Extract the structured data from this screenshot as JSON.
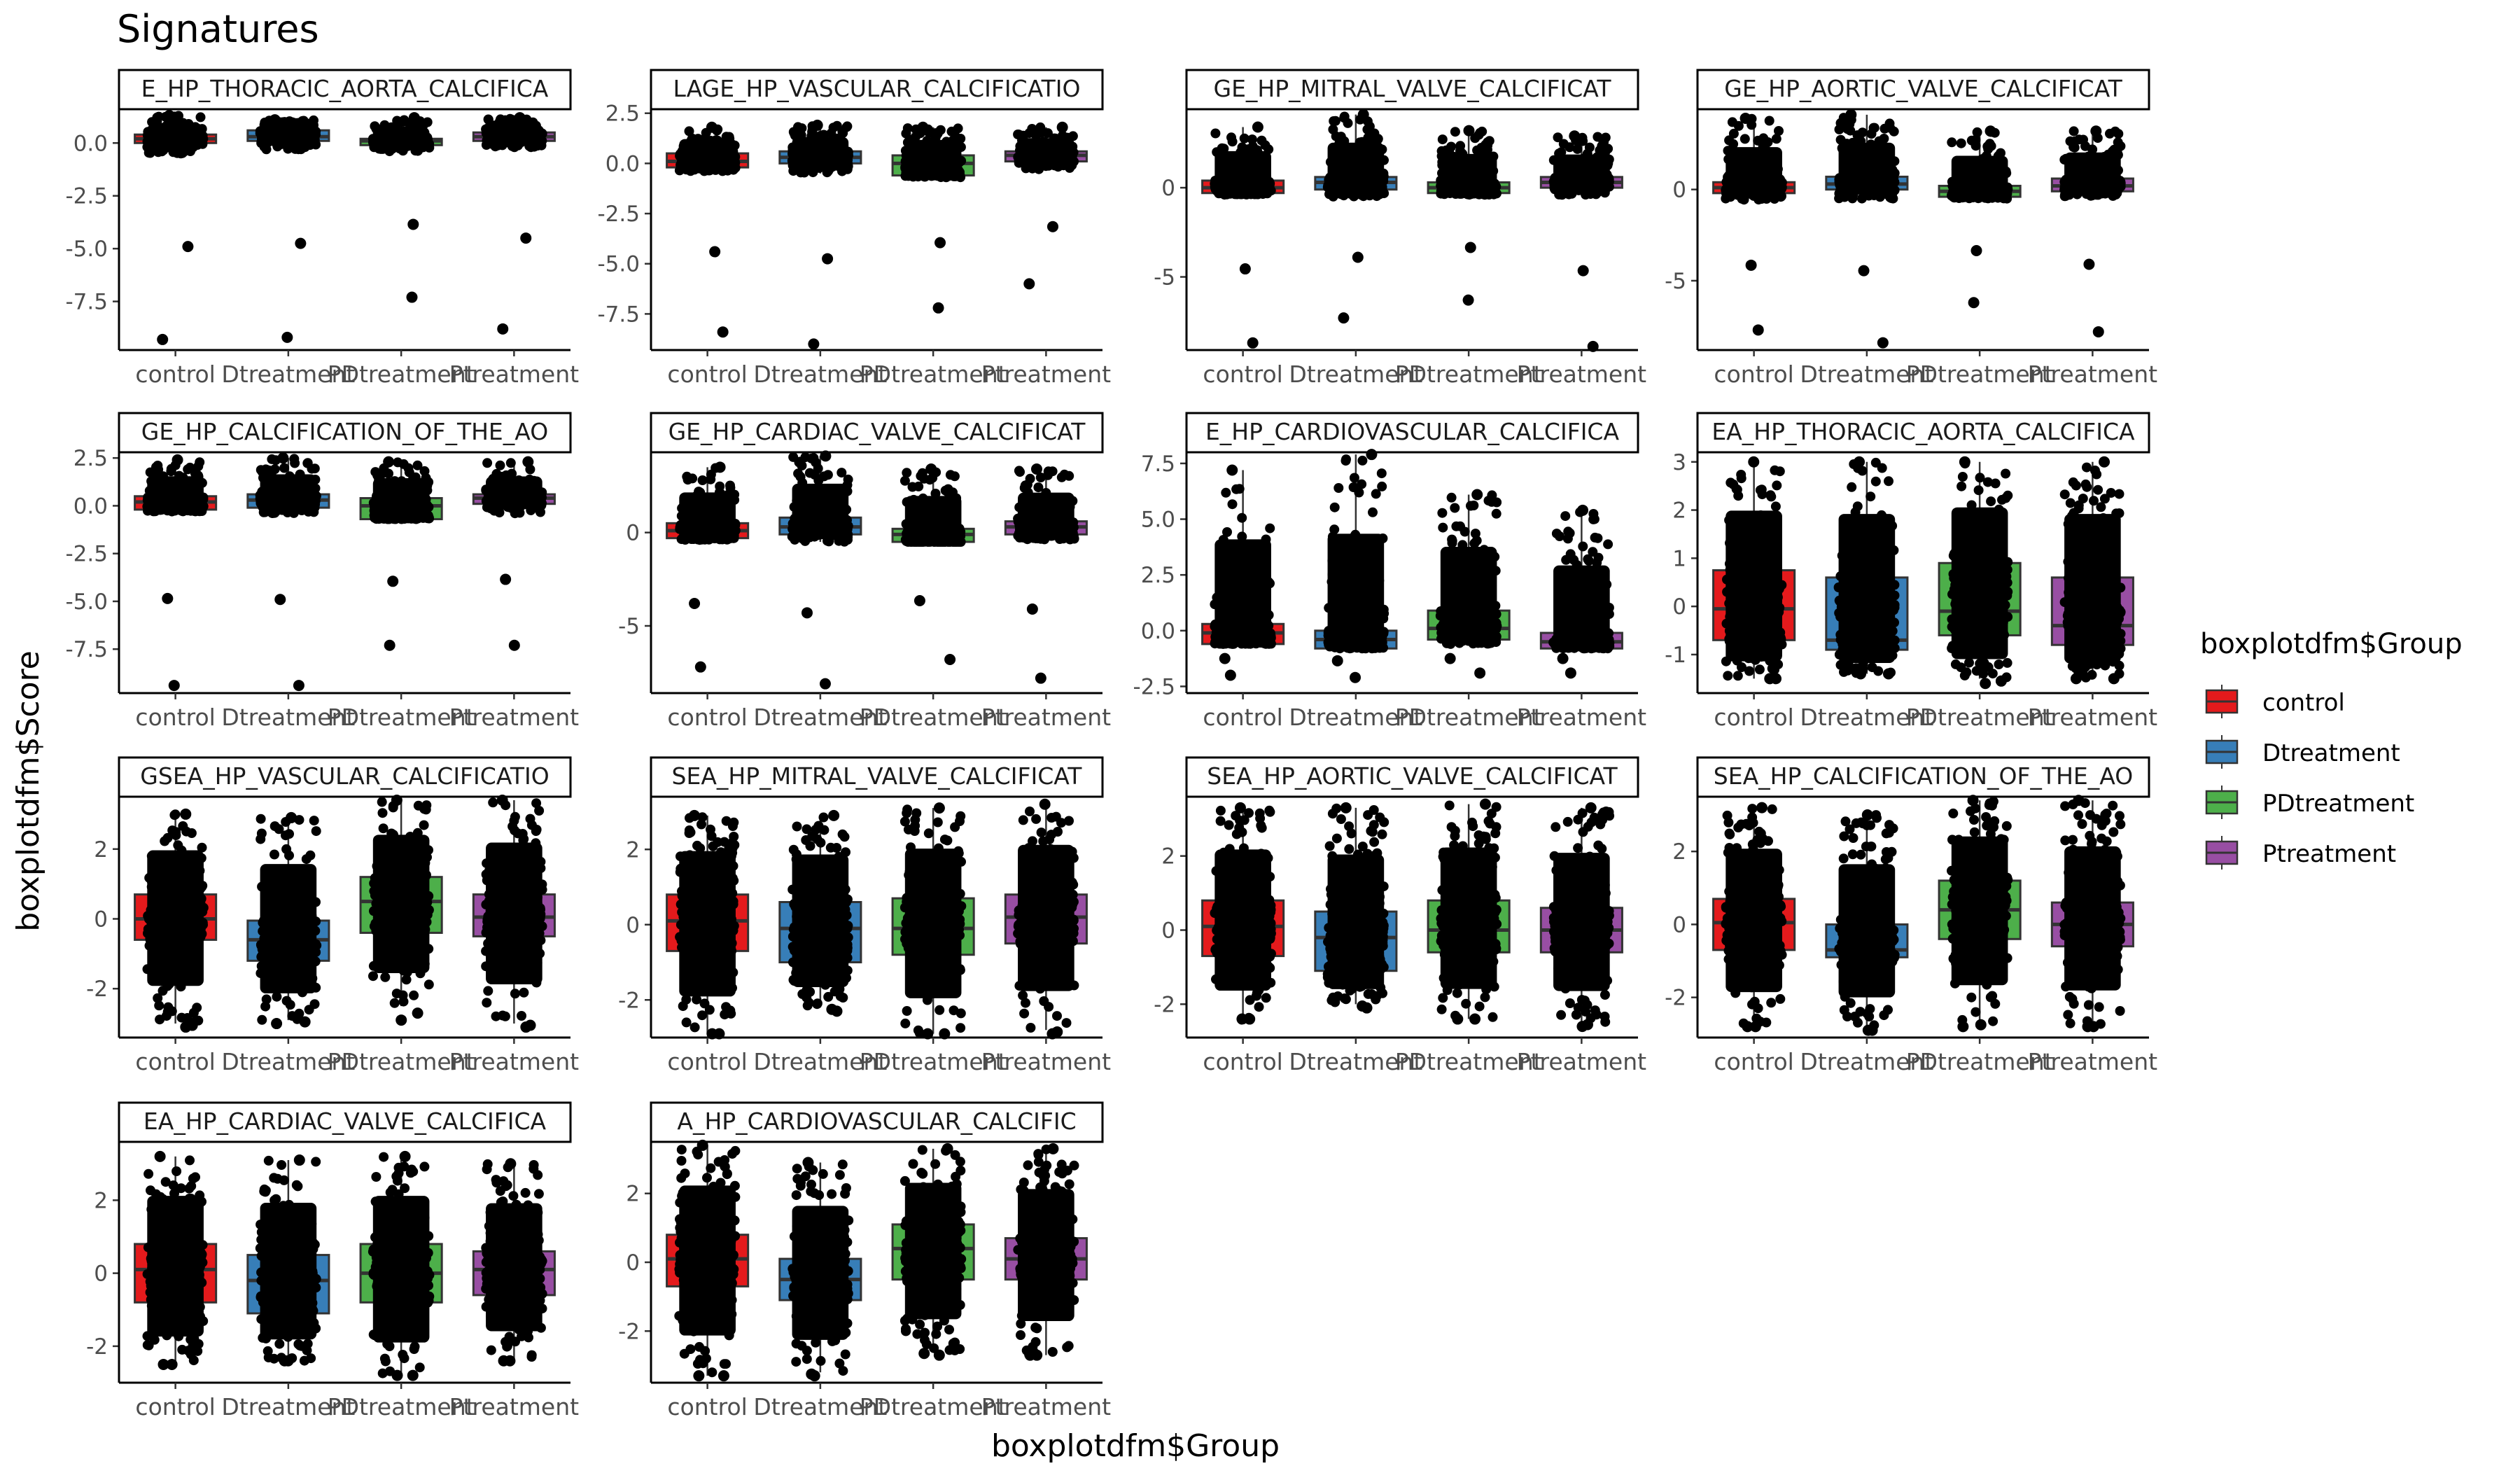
{
  "chart_data": {
    "type": "boxplot",
    "title": "Signatures",
    "xlabel": "boxplotdfm$Group",
    "ylabel": "boxplotdfm$Score",
    "categories": [
      "control",
      "Dtreatment",
      "PDtreatment",
      "Ptreatment"
    ],
    "legend": {
      "title": "boxplotdfm$Group",
      "placement": "right",
      "entries": [
        {
          "name": "control",
          "color": "#E41A1C"
        },
        {
          "name": "Dtreatment",
          "color": "#377EB8"
        },
        {
          "name": "PDtreatment",
          "color": "#4DAF4A"
        },
        {
          "name": "Ptreatment",
          "color": "#984EA3"
        }
      ]
    },
    "point_color": "#000000",
    "panels": [
      {
        "strip": "E_HP_THORACIC_AORTA_CALCIFICA",
        "ylim": [
          -9.8,
          1.6
        ],
        "yticks": [
          0,
          -2.5,
          -5,
          -7.5
        ],
        "ytick_labels": [
          "0.0",
          "-2.5",
          "-5.0",
          "-7.5"
        ],
        "boxes": [
          [
            -0.5,
            0.0,
            0.2,
            0.4,
            1.3,
            -9.3
          ],
          [
            -0.3,
            0.1,
            0.3,
            0.6,
            1.1,
            -9.2
          ],
          [
            -0.4,
            -0.1,
            0.1,
            0.2,
            1.2,
            -7.3
          ],
          [
            -0.2,
            0.1,
            0.3,
            0.5,
            1.2,
            -8.8
          ]
        ]
      },
      {
        "strip": "LAGE_HP_VASCULAR_CALCIFICATIO",
        "ylim": [
          -9.3,
          2.7
        ],
        "yticks": [
          2.5,
          0,
          -2.5,
          -5,
          -7.5
        ],
        "ytick_labels": [
          "2.5",
          "0.0",
          "-2.5",
          "-5.0",
          "-7.5"
        ],
        "boxes": [
          [
            -0.4,
            -0.2,
            0.1,
            0.5,
            1.8,
            -8.4
          ],
          [
            -0.5,
            0.0,
            0.3,
            0.6,
            1.9,
            -9.0
          ],
          [
            -0.7,
            -0.6,
            0.0,
            0.4,
            1.8,
            -7.2
          ],
          [
            -0.3,
            0.1,
            0.4,
            0.6,
            1.8,
            -6.0
          ]
        ]
      },
      {
        "strip": "GE_HP_MITRAL_VALVE_CALCIFICAT",
        "ylim": [
          -9.1,
          4.4
        ],
        "yticks": [
          0,
          -5
        ],
        "ytick_labels": [
          "0",
          "-5"
        ],
        "boxes": [
          [
            -0.4,
            -0.3,
            0.0,
            0.4,
            3.4,
            -8.7
          ],
          [
            -0.5,
            -0.1,
            0.3,
            0.6,
            4.1,
            -7.3
          ],
          [
            -0.4,
            -0.3,
            0.0,
            0.3,
            3.2,
            -6.3
          ],
          [
            -0.4,
            0.0,
            0.3,
            0.6,
            2.9,
            -8.9
          ]
        ]
      },
      {
        "strip": "GE_HP_AORTIC_VALVE_CALCIFICAT",
        "ylim": [
          -8.8,
          4.4
        ],
        "yticks": [
          0,
          -5
        ],
        "ytick_labels": [
          "0",
          "-5"
        ],
        "boxes": [
          [
            -0.6,
            -0.2,
            0.1,
            0.4,
            3.9,
            -7.7
          ],
          [
            -0.5,
            0.0,
            0.3,
            0.7,
            4.1,
            -8.4
          ],
          [
            -0.5,
            -0.4,
            -0.1,
            0.2,
            3.2,
            -6.2
          ],
          [
            -0.4,
            -0.1,
            0.2,
            0.6,
            3.2,
            -7.8
          ]
        ]
      },
      {
        "strip": "GE_HP_CALCIFICATION_OF_THE_AO",
        "ylim": [
          -9.8,
          2.8
        ],
        "yticks": [
          2.5,
          0,
          -2.5,
          -5,
          -7.5
        ],
        "ytick_labels": [
          "2.5",
          "0.0",
          "-2.5",
          "-5.0",
          "-7.5"
        ],
        "boxes": [
          [
            -0.3,
            -0.2,
            0.2,
            0.5,
            2.4,
            -9.4
          ],
          [
            -0.4,
            -0.1,
            0.3,
            0.6,
            2.5,
            -9.4
          ],
          [
            -0.6,
            -0.7,
            0.0,
            0.4,
            2.3,
            -7.3
          ],
          [
            -0.4,
            0.1,
            0.4,
            0.6,
            2.3,
            -7.3
          ]
        ]
      },
      {
        "strip": "GE_HP_CARDIAC_VALVE_CALCIFICAT",
        "ylim": [
          -8.6,
          4.3
        ],
        "yticks": [
          0,
          -5
        ],
        "ytick_labels": [
          "0",
          "-5"
        ],
        "boxes": [
          [
            -0.4,
            -0.3,
            0.1,
            0.5,
            3.5,
            -7.2
          ],
          [
            -0.5,
            -0.1,
            0.3,
            0.8,
            4.1,
            -8.1
          ],
          [
            -0.5,
            -0.5,
            -0.1,
            0.2,
            3.4,
            -6.8
          ],
          [
            -0.4,
            -0.1,
            0.3,
            0.6,
            3.4,
            -7.8
          ]
        ]
      },
      {
        "strip": "E_HP_CARDIOVASCULAR_CALCIFICA",
        "ylim": [
          -2.8,
          8.0
        ],
        "yticks": [
          7.5,
          5,
          2.5,
          0,
          -2.5
        ],
        "ytick_labels": [
          "7.5",
          "5.0",
          "2.5",
          "0.0",
          "-2.5"
        ],
        "boxes": [
          [
            -0.5,
            -0.6,
            -0.1,
            0.3,
            7.2,
            -2.0
          ],
          [
            -0.6,
            -0.8,
            -0.4,
            0.0,
            7.9,
            -2.1
          ],
          [
            -0.6,
            -0.4,
            0.1,
            0.9,
            6.1,
            -1.9
          ],
          [
            -0.6,
            -0.8,
            -0.5,
            -0.1,
            5.4,
            -1.9
          ]
        ]
      },
      {
        "strip": "EA_HP_THORACIC_AORTA_CALCIFICA",
        "ylim": [
          -1.8,
          3.2
        ],
        "yticks": [
          3,
          2,
          1,
          0,
          -1
        ],
        "ytick_labels": [
          "3",
          "2",
          "1",
          "0",
          "-1"
        ],
        "boxes": [
          [
            -1.5,
            -0.7,
            -0.05,
            0.75,
            3.0,
            -1.5
          ],
          [
            -1.4,
            -0.9,
            -0.7,
            0.6,
            3.0,
            -1.4
          ],
          [
            -1.5,
            -0.6,
            -0.1,
            0.9,
            3.0,
            -1.6
          ],
          [
            -1.5,
            -0.8,
            -0.4,
            0.6,
            3.0,
            -1.5
          ]
        ]
      },
      {
        "strip": "GSEA_HP_VASCULAR_CALCIFICATIO",
        "ylim": [
          -3.4,
          3.5
        ],
        "yticks": [
          2,
          0,
          -2
        ],
        "ytick_labels": [
          "2",
          "0",
          "-2"
        ],
        "boxes": [
          [
            -3.0,
            -0.6,
            0.0,
            0.7,
            3.0,
            -3.1
          ],
          [
            -2.9,
            -1.2,
            -0.6,
            -0.05,
            2.9,
            -3.0
          ],
          [
            -2.5,
            -0.4,
            0.5,
            1.2,
            3.4,
            -2.9
          ],
          [
            -3.0,
            -0.5,
            0.05,
            0.7,
            3.4,
            -3.1
          ]
        ]
      },
      {
        "strip": "SEA_HP_MITRAL_VALVE_CALCIFICAT",
        "ylim": [
          -3.0,
          3.4
        ],
        "yticks": [
          2,
          0,
          -2
        ],
        "ytick_labels": [
          "2",
          "0",
          "-2"
        ],
        "boxes": [
          [
            -2.9,
            -0.7,
            0.1,
            0.8,
            2.9,
            -2.9
          ],
          [
            -2.2,
            -1.0,
            -0.1,
            0.6,
            2.9,
            -2.3
          ],
          [
            -2.9,
            -0.8,
            -0.1,
            0.7,
            3.1,
            -2.9
          ],
          [
            -2.8,
            -0.5,
            0.2,
            0.8,
            3.2,
            -2.9
          ]
        ]
      },
      {
        "strip": "SEA_HP_AORTIC_VALVE_CALCIFICAT",
        "ylim": [
          -2.9,
          3.6
        ],
        "yticks": [
          2,
          0,
          -2
        ],
        "ytick_labels": [
          "2",
          "0",
          "-2"
        ],
        "boxes": [
          [
            -2.4,
            -0.7,
            0.1,
            0.8,
            3.3,
            -2.4
          ],
          [
            -2.0,
            -1.1,
            -0.2,
            0.5,
            3.3,
            -2.1
          ],
          [
            -2.4,
            -0.6,
            0.0,
            0.8,
            3.4,
            -2.4
          ],
          [
            -2.5,
            -0.6,
            0.0,
            0.6,
            3.3,
            -2.6
          ]
        ]
      },
      {
        "strip": "SEA_HP_CALCIFICATION_OF_THE_AO",
        "ylim": [
          -3.1,
          3.5
        ],
        "yticks": [
          2,
          0,
          -2
        ],
        "ytick_labels": [
          "2",
          "0",
          "-2"
        ],
        "boxes": [
          [
            -2.8,
            -0.7,
            0.05,
            0.7,
            3.2,
            -2.8
          ],
          [
            -2.9,
            -0.9,
            -0.7,
            0.0,
            3.0,
            -2.9
          ],
          [
            -2.7,
            -0.4,
            0.4,
            1.2,
            3.4,
            -2.8
          ],
          [
            -2.8,
            -0.6,
            0.0,
            0.6,
            3.4,
            -2.8
          ]
        ]
      },
      {
        "strip": "EA_HP_CARDIAC_VALVE_CALCIFICA",
        "ylim": [
          -3.0,
          3.6
        ],
        "yticks": [
          2,
          0,
          -2
        ],
        "ytick_labels": [
          "2",
          "0",
          "-2"
        ],
        "boxes": [
          [
            -2.5,
            -0.8,
            0.1,
            0.8,
            3.2,
            -2.5
          ],
          [
            -2.4,
            -1.1,
            -0.2,
            0.5,
            3.1,
            -2.4
          ],
          [
            -2.8,
            -0.8,
            0.0,
            0.8,
            3.2,
            -2.8
          ],
          [
            -2.4,
            -0.6,
            0.1,
            0.6,
            3.0,
            -2.4
          ]
        ]
      },
      {
        "strip": "A_HP_CARDIOVASCULAR_CALCIFIC",
        "ylim": [
          -3.5,
          3.5
        ],
        "yticks": [
          2,
          0,
          -2
        ],
        "ytick_labels": [
          "2",
          "0",
          "-2"
        ],
        "boxes": [
          [
            -3.3,
            -0.7,
            0.1,
            0.8,
            3.4,
            -3.3
          ],
          [
            -3.2,
            -1.1,
            -0.5,
            0.1,
            2.9,
            -3.3
          ],
          [
            -2.6,
            -0.5,
            0.4,
            1.1,
            3.3,
            -2.7
          ],
          [
            -2.7,
            -0.5,
            0.1,
            0.7,
            3.3,
            -2.7
          ]
        ]
      }
    ]
  }
}
